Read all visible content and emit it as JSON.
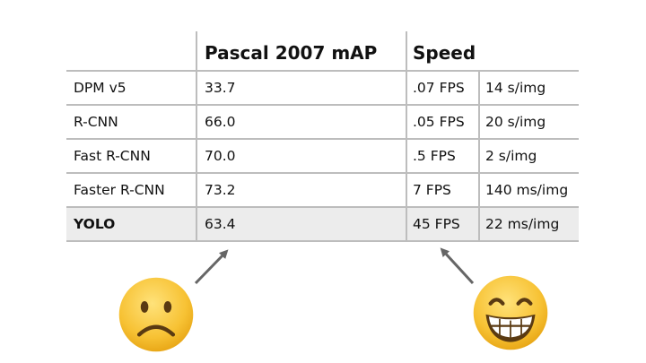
{
  "table": {
    "header": {
      "name": "",
      "map": "Pascal 2007 mAP",
      "speed": "Speed"
    },
    "rows": [
      {
        "name": "DPM v5",
        "map": "33.7",
        "fps": ".07 FPS",
        "time": "14 s/img",
        "bold": false,
        "highlight": false
      },
      {
        "name": "R-CNN",
        "map": "66.0",
        "fps": ".05 FPS",
        "time": "20 s/img",
        "bold": false,
        "highlight": false
      },
      {
        "name": "Fast R-CNN",
        "map": "70.0",
        "fps": ".5 FPS",
        "time": "2 s/img",
        "bold": false,
        "highlight": false
      },
      {
        "name": "Faster R-CNN",
        "map": "73.2",
        "fps": "7 FPS",
        "time": "140 ms/img",
        "bold": false,
        "highlight": false
      },
      {
        "name": "YOLO",
        "map": "63.4",
        "fps": "45 FPS",
        "time": "22 ms/img",
        "bold": true,
        "highlight": true
      }
    ]
  },
  "annotations": {
    "left_arrow_icon": "arrow-up-right-icon",
    "right_arrow_icon": "arrow-up-left-icon",
    "sad_emoji_icon": "frowning-face-icon",
    "happy_emoji_icon": "grinning-face-icon"
  },
  "colors": {
    "grid": "#bdbdbd",
    "highlight_row": "#ececec",
    "arrow": "#666666",
    "emoji_yellow": "#f7c234"
  }
}
